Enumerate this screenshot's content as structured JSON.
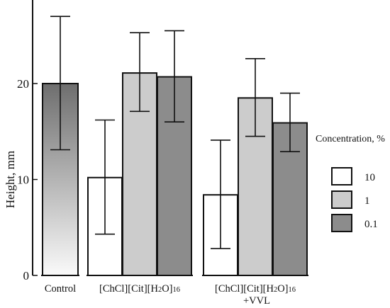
{
  "chart_data": {
    "type": "bar",
    "ylabel": "Height, mm",
    "xlabel": "",
    "ylim": [
      0,
      29
    ],
    "yticks": [
      0,
      10,
      20
    ],
    "legend": {
      "title": "Concentration, %",
      "placement": "right",
      "entries": [
        "10",
        "1",
        "0.1"
      ]
    },
    "colors": {
      "10": "#ffffff",
      "1": "#cccccc",
      "0.1": "#8c8c8c",
      "control_top": "#6e6e6e",
      "control_bottom": "#fafafa"
    },
    "groups": [
      {
        "label_main": "Control",
        "label_sub": "",
        "label_line2": "",
        "bars": [
          {
            "series": "control",
            "value": 20.0,
            "err_low": 13.1,
            "err_high": 27.0
          }
        ]
      },
      {
        "label_main": "[ChCl][Cit][H",
        "label_sub": "2",
        "label_after": "O]",
        "label_sub2": "16",
        "label_line2": "",
        "bars": [
          {
            "series": "10",
            "value": 10.2,
            "err_low": 4.3,
            "err_high": 16.2
          },
          {
            "series": "1",
            "value": 21.1,
            "err_low": 17.1,
            "err_high": 25.3
          },
          {
            "series": "0.1",
            "value": 20.7,
            "err_low": 16.0,
            "err_high": 25.5
          }
        ]
      },
      {
        "label_main": "[ChCl][Cit][H",
        "label_sub": "2",
        "label_after": "O]",
        "label_sub2": "16",
        "label_line2": "+VVL",
        "bars": [
          {
            "series": "10",
            "value": 8.4,
            "err_low": 2.8,
            "err_high": 14.1
          },
          {
            "series": "1",
            "value": 18.5,
            "err_low": 14.5,
            "err_high": 22.6
          },
          {
            "series": "0.1",
            "value": 15.9,
            "err_low": 12.9,
            "err_high": 19.0
          }
        ]
      }
    ]
  }
}
